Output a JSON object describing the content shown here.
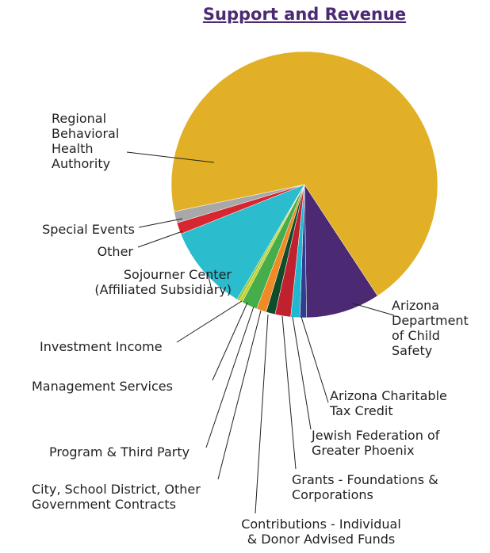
{
  "chart_data": {
    "type": "pie",
    "title": "Support and Revenue",
    "categories": [
      "Arizona\nDepartment\nof Child\nSafety",
      "Arizona Charitable\nTax Credit",
      "Jewish Federation of\nGreater Phoenix",
      "Grants - Foundations &\nCorporations",
      "Contributions - Individual\n& Donor Advised Funds",
      "City, School District, Other\nGovernment Contracts",
      "Program & Third Party",
      "Management Services",
      "Investment Income",
      "Sojourner Center\n(Affiliated Subsidiary)",
      "Other",
      "Special Events",
      "Regional\nBehavioral\nHealth\nAuthority"
    ],
    "values": [
      9,
      0.8,
      1.1,
      1.9,
      1.1,
      1.2,
      1.9,
      0.4,
      0.3,
      10.5,
      1.4,
      1.4,
      69
    ],
    "colors": [
      "#4b2a73",
      "#2f3f8f",
      "#1fb8d0",
      "#c0212f",
      "#0f4d2a",
      "#f08a24",
      "#45ad4a",
      "#c9d02a",
      "#8fc640",
      "#2bbccd",
      "#d6262f",
      "#a8a8a8",
      "#e2b026"
    ]
  }
}
